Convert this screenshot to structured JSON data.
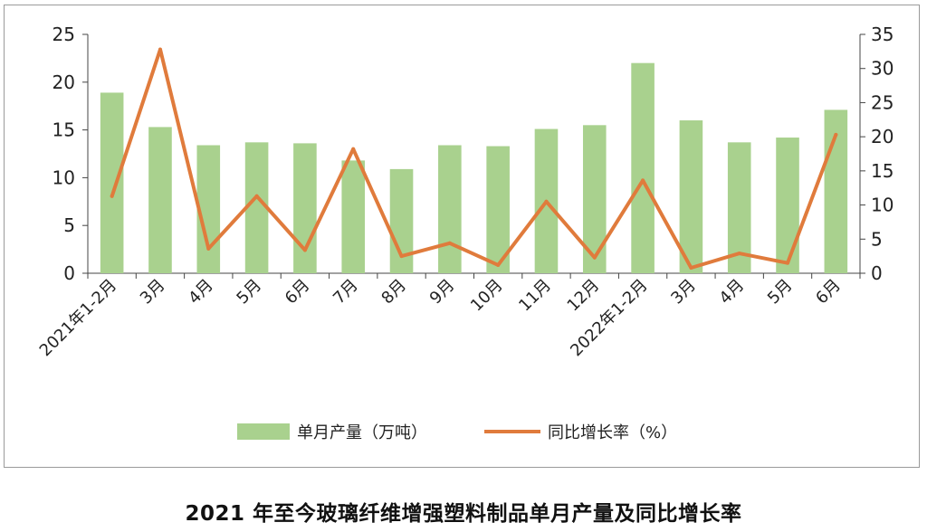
{
  "caption": "2021 年至今玻璃纤维增强塑料制品单月产量及同比增长率",
  "chart_data": {
    "type": "bar+line",
    "categories": [
      "2021年1-2月",
      "3月",
      "4月",
      "5月",
      "6月",
      "7月",
      "8月",
      "9月",
      "10月",
      "11月",
      "12月",
      "2022年1-2月",
      "3月",
      "4月",
      "5月",
      "6月"
    ],
    "series": [
      {
        "name": "单月产量（万吨）",
        "type": "bar",
        "axis": "left",
        "color": "#a9d18e",
        "values": [
          18.9,
          15.3,
          13.4,
          13.7,
          13.6,
          11.8,
          10.9,
          13.4,
          13.3,
          15.1,
          15.5,
          22.0,
          16.0,
          13.7,
          14.2,
          17.1
        ]
      },
      {
        "name": "同比增长率（%）",
        "type": "line",
        "axis": "right",
        "color": "#e07b3c",
        "values": [
          11.3,
          32.8,
          3.6,
          11.3,
          3.4,
          18.2,
          2.5,
          4.4,
          1.2,
          10.5,
          2.3,
          13.6,
          0.8,
          2.9,
          1.5,
          20.3
        ]
      }
    ],
    "y_left": {
      "min": 0,
      "max": 25,
      "ticks": [
        0,
        5,
        10,
        15,
        20,
        25
      ]
    },
    "y_right": {
      "min": 0,
      "max": 35,
      "ticks": [
        0,
        5,
        10,
        15,
        20,
        25,
        30,
        35
      ]
    },
    "legend_position": "bottom",
    "grid": false
  }
}
